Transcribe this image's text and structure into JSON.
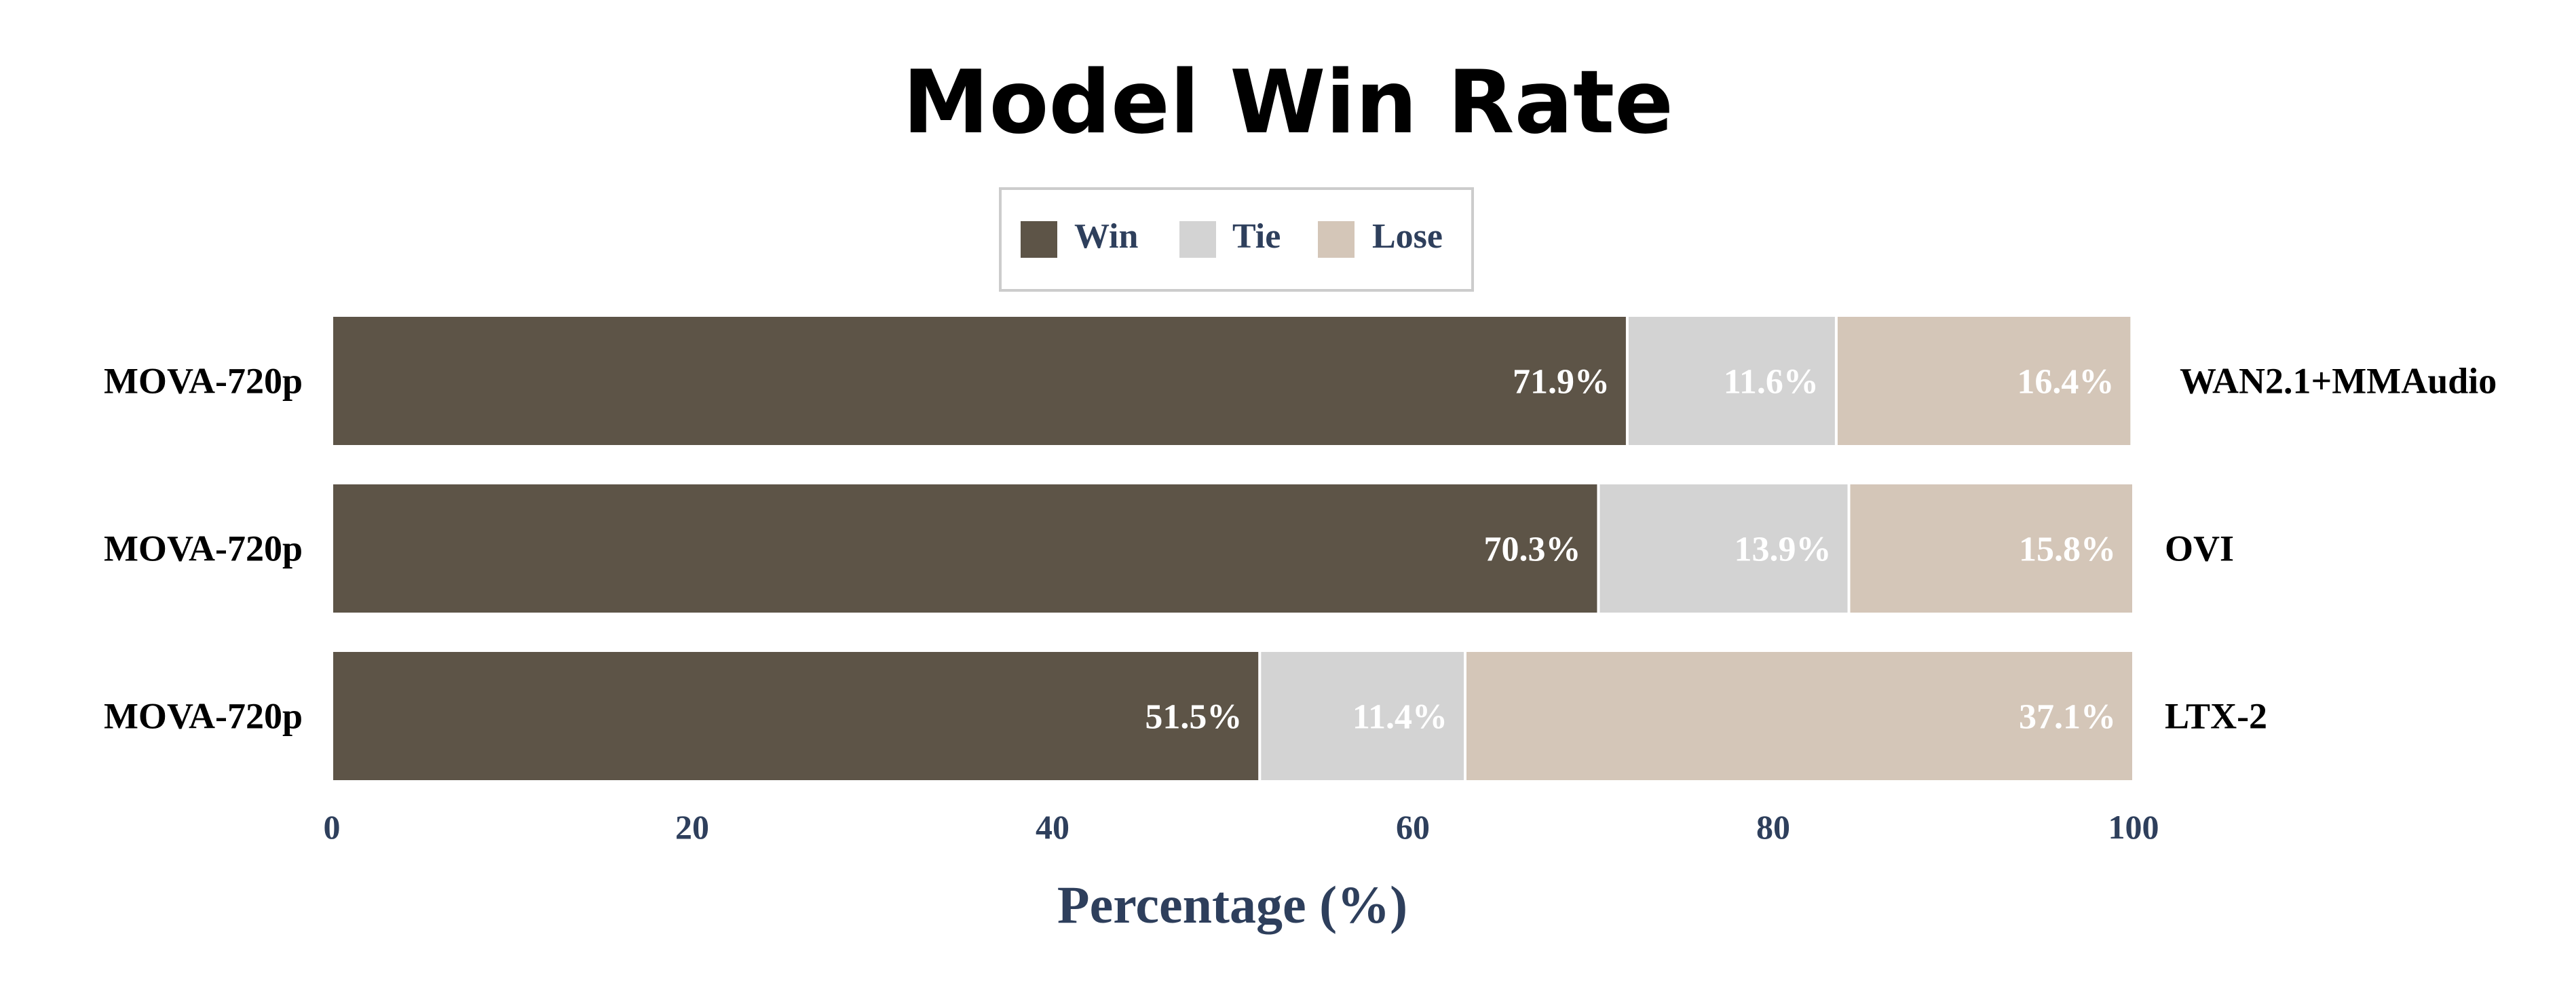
{
  "colors": {
    "win": "#5d5447",
    "tie": "#d3d3d3",
    "lose": "#d4c6b8",
    "axis_text": "#2e3f5c",
    "label_text": "#000000",
    "value_text": "#ffffff",
    "legend_border": "#cccccc"
  },
  "chart_data": {
    "type": "bar",
    "orientation": "horizontal",
    "stacked": true,
    "title": "Model Win Rate",
    "xlabel": "Percentage (%)",
    "xlim": [
      0,
      100
    ],
    "xticks": [
      0,
      20,
      40,
      60,
      80,
      100
    ],
    "grid": false,
    "legend_position": "top-center",
    "legend": [
      "Win",
      "Tie",
      "Lose"
    ],
    "left_labels": [
      "MOVA-720p",
      "MOVA-720p",
      "MOVA-720p"
    ],
    "right_labels": [
      "WAN2.1+MMAudio",
      "OVI",
      "LTX-2"
    ],
    "series": [
      {
        "name": "Win",
        "values": [
          71.9,
          70.3,
          51.5
        ]
      },
      {
        "name": "Tie",
        "values": [
          11.6,
          13.9,
          11.4
        ]
      },
      {
        "name": "Lose",
        "values": [
          16.4,
          15.8,
          37.1
        ]
      }
    ],
    "value_labels": [
      [
        "71.9%",
        "11.6%",
        "16.4%"
      ],
      [
        "70.3%",
        "13.9%",
        "15.8%"
      ],
      [
        "51.5%",
        "11.4%",
        "37.1%"
      ]
    ]
  }
}
